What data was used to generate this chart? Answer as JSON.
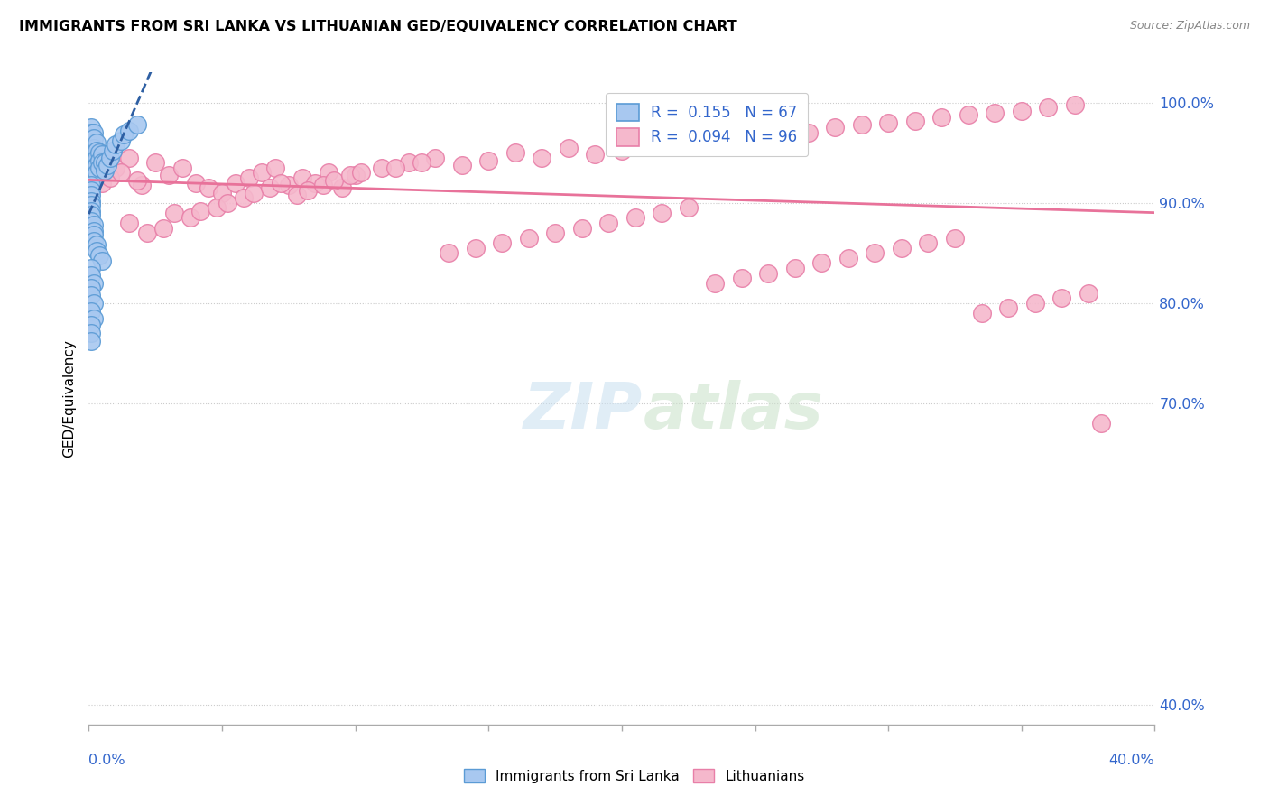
{
  "title": "IMMIGRANTS FROM SRI LANKA VS LITHUANIAN GED/EQUIVALENCY CORRELATION CHART",
  "source": "Source: ZipAtlas.com",
  "ylabel": "GED/Equivalency",
  "ytick_labels": [
    "100.0%",
    "90.0%",
    "80.0%",
    "70.0%",
    "40.0%"
  ],
  "ytick_values": [
    1.0,
    0.9,
    0.8,
    0.7,
    0.4
  ],
  "xmin": 0.0,
  "xmax": 0.4,
  "ymin": 0.38,
  "ymax": 1.03,
  "blue_color": "#a8c8f0",
  "blue_edge_color": "#5b9bd5",
  "pink_color": "#f5b8cc",
  "pink_edge_color": "#e87fa8",
  "blue_line_color": "#2e5fa3",
  "pink_line_color": "#e8729a",
  "sri_lanka_x": [
    0.001,
    0.001,
    0.001,
    0.001,
    0.001,
    0.001,
    0.001,
    0.001,
    0.001,
    0.001,
    0.002,
    0.002,
    0.002,
    0.002,
    0.002,
    0.002,
    0.002,
    0.002,
    0.002,
    0.002,
    0.003,
    0.003,
    0.003,
    0.003,
    0.003,
    0.004,
    0.004,
    0.004,
    0.005,
    0.005,
    0.006,
    0.006,
    0.007,
    0.008,
    0.009,
    0.01,
    0.012,
    0.013,
    0.015,
    0.018,
    0.001,
    0.001,
    0.001,
    0.001,
    0.001,
    0.001,
    0.001,
    0.001,
    0.002,
    0.002,
    0.002,
    0.002,
    0.003,
    0.003,
    0.004,
    0.005,
    0.001,
    0.001,
    0.002,
    0.001,
    0.001,
    0.002,
    0.001,
    0.002,
    0.001,
    0.001,
    0.001
  ],
  "sri_lanka_y": [
    0.975,
    0.97,
    0.965,
    0.96,
    0.958,
    0.955,
    0.952,
    0.948,
    0.945,
    0.942,
    0.97,
    0.965,
    0.955,
    0.95,
    0.945,
    0.94,
    0.935,
    0.932,
    0.928,
    0.922,
    0.96,
    0.952,
    0.945,
    0.938,
    0.93,
    0.95,
    0.942,
    0.935,
    0.948,
    0.94,
    0.94,
    0.932,
    0.938,
    0.945,
    0.952,
    0.958,
    0.962,
    0.968,
    0.972,
    0.978,
    0.918,
    0.912,
    0.908,
    0.902,
    0.898,
    0.892,
    0.888,
    0.882,
    0.878,
    0.872,
    0.868,
    0.862,
    0.858,
    0.852,
    0.848,
    0.842,
    0.835,
    0.828,
    0.82,
    0.815,
    0.808,
    0.8,
    0.792,
    0.785,
    0.778,
    0.77,
    0.762
  ],
  "lithuanian_x": [
    0.005,
    0.01,
    0.015,
    0.008,
    0.012,
    0.02,
    0.018,
    0.025,
    0.03,
    0.035,
    0.04,
    0.045,
    0.05,
    0.055,
    0.06,
    0.065,
    0.07,
    0.075,
    0.08,
    0.085,
    0.09,
    0.095,
    0.1,
    0.11,
    0.12,
    0.13,
    0.14,
    0.15,
    0.16,
    0.17,
    0.18,
    0.19,
    0.2,
    0.21,
    0.22,
    0.23,
    0.24,
    0.25,
    0.26,
    0.27,
    0.28,
    0.29,
    0.3,
    0.31,
    0.32,
    0.33,
    0.34,
    0.35,
    0.36,
    0.37,
    0.015,
    0.022,
    0.028,
    0.032,
    0.038,
    0.042,
    0.048,
    0.052,
    0.058,
    0.062,
    0.068,
    0.072,
    0.078,
    0.082,
    0.088,
    0.092,
    0.098,
    0.102,
    0.115,
    0.125,
    0.135,
    0.145,
    0.155,
    0.165,
    0.175,
    0.185,
    0.195,
    0.205,
    0.215,
    0.225,
    0.235,
    0.245,
    0.255,
    0.265,
    0.275,
    0.285,
    0.295,
    0.305,
    0.315,
    0.325,
    0.335,
    0.345,
    0.355,
    0.365,
    0.375,
    0.38
  ],
  "lithuanian_y": [
    0.92,
    0.935,
    0.945,
    0.925,
    0.93,
    0.918,
    0.922,
    0.94,
    0.928,
    0.935,
    0.92,
    0.915,
    0.91,
    0.92,
    0.925,
    0.93,
    0.935,
    0.918,
    0.925,
    0.92,
    0.93,
    0.915,
    0.928,
    0.935,
    0.94,
    0.945,
    0.938,
    0.942,
    0.95,
    0.945,
    0.955,
    0.948,
    0.952,
    0.96,
    0.958,
    0.962,
    0.965,
    0.968,
    0.972,
    0.97,
    0.975,
    0.978,
    0.98,
    0.982,
    0.985,
    0.988,
    0.99,
    0.992,
    0.995,
    0.998,
    0.88,
    0.87,
    0.875,
    0.89,
    0.885,
    0.892,
    0.895,
    0.9,
    0.905,
    0.91,
    0.915,
    0.92,
    0.908,
    0.912,
    0.918,
    0.922,
    0.928,
    0.93,
    0.935,
    0.94,
    0.85,
    0.855,
    0.86,
    0.865,
    0.87,
    0.875,
    0.88,
    0.885,
    0.89,
    0.895,
    0.82,
    0.825,
    0.83,
    0.835,
    0.84,
    0.845,
    0.85,
    0.855,
    0.86,
    0.865,
    0.79,
    0.795,
    0.8,
    0.805,
    0.81,
    0.68
  ]
}
